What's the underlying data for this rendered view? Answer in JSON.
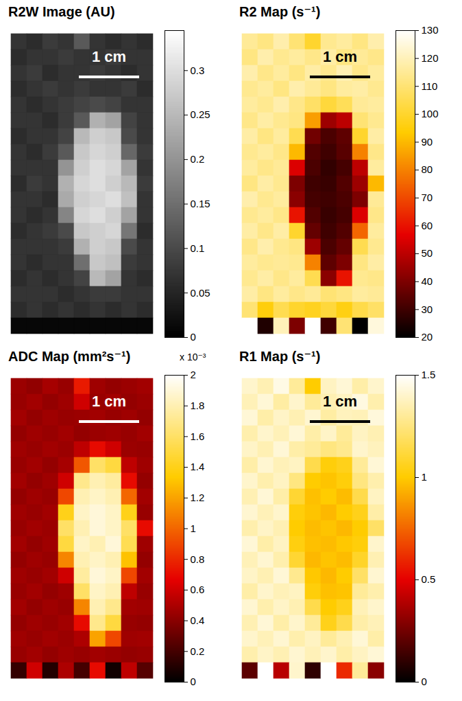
{
  "chart_data": [
    {
      "type": "heatmap",
      "title": "R2W Image (AU)",
      "color": "gray",
      "tick_labels": false,
      "annotations": [
        {
          "text": "1 cm",
          "color": "white"
        }
      ],
      "colorbar": {
        "range": [
          0,
          0.345
        ],
        "ticks": [
          0,
          0.05,
          0.1,
          0.15,
          0.2,
          0.25,
          0.3
        ]
      },
      "cells": [
        [
          0.07,
          0.06,
          0.08,
          0.07,
          0.12,
          0.07,
          0.06,
          0.07,
          0.06
        ],
        [
          0.06,
          0.07,
          0.07,
          0.08,
          0.07,
          0.07,
          0.08,
          0.07,
          0.07
        ],
        [
          0.07,
          0.08,
          0.06,
          0.07,
          0.07,
          0.08,
          0.07,
          0.06,
          0.07
        ],
        [
          0.06,
          0.07,
          0.08,
          0.07,
          0.08,
          0.07,
          0.07,
          0.08,
          0.06
        ],
        [
          0.07,
          0.06,
          0.07,
          0.08,
          0.09,
          0.1,
          0.09,
          0.07,
          0.07
        ],
        [
          0.07,
          0.07,
          0.06,
          0.08,
          0.12,
          0.24,
          0.22,
          0.09,
          0.07
        ],
        [
          0.06,
          0.07,
          0.07,
          0.09,
          0.25,
          0.28,
          0.27,
          0.1,
          0.07
        ],
        [
          0.07,
          0.06,
          0.08,
          0.12,
          0.27,
          0.29,
          0.28,
          0.14,
          0.08
        ],
        [
          0.07,
          0.07,
          0.07,
          0.2,
          0.28,
          0.3,
          0.29,
          0.22,
          0.07
        ],
        [
          0.06,
          0.08,
          0.07,
          0.24,
          0.29,
          0.3,
          0.28,
          0.25,
          0.08
        ],
        [
          0.07,
          0.07,
          0.06,
          0.23,
          0.28,
          0.29,
          0.3,
          0.26,
          0.07
        ],
        [
          0.07,
          0.06,
          0.07,
          0.18,
          0.29,
          0.3,
          0.28,
          0.22,
          0.07
        ],
        [
          0.06,
          0.07,
          0.08,
          0.1,
          0.27,
          0.28,
          0.29,
          0.16,
          0.06
        ],
        [
          0.07,
          0.07,
          0.07,
          0.08,
          0.24,
          0.28,
          0.27,
          0.1,
          0.07
        ],
        [
          0.07,
          0.06,
          0.07,
          0.07,
          0.15,
          0.27,
          0.26,
          0.08,
          0.07
        ],
        [
          0.06,
          0.07,
          0.06,
          0.07,
          0.09,
          0.25,
          0.22,
          0.07,
          0.06
        ],
        [
          0.07,
          0.07,
          0.07,
          0.06,
          0.07,
          0.08,
          0.08,
          0.07,
          0.07
        ],
        [
          0.06,
          0.07,
          0.06,
          0.07,
          0.06,
          0.07,
          0.06,
          0.07,
          0.06
        ],
        [
          0.01,
          0.01,
          0.01,
          0.01,
          0.01,
          0.01,
          0.01,
          0.01,
          0.01
        ]
      ]
    },
    {
      "type": "heatmap",
      "title": "R2 Map (s⁻¹)",
      "color": "hot",
      "tick_labels": false,
      "annotations": [
        {
          "text": "1 cm",
          "color": "black"
        }
      ],
      "colorbar": {
        "range": [
          20,
          130
        ],
        "ticks": [
          20,
          30,
          40,
          50,
          60,
          70,
          80,
          90,
          100,
          110,
          120,
          130
        ]
      },
      "cells": [
        [
          115,
          112,
          118,
          110,
          100,
          114,
          116,
          112,
          118
        ],
        [
          112,
          118,
          114,
          116,
          113,
          117,
          112,
          115,
          113
        ],
        [
          118,
          113,
          116,
          112,
          117,
          114,
          119,
          113,
          116
        ],
        [
          114,
          116,
          112,
          118,
          115,
          112,
          116,
          117,
          114
        ],
        [
          116,
          114,
          118,
          113,
          108,
          102,
          106,
          115,
          116
        ],
        [
          113,
          117,
          114,
          112,
          85,
          45,
          50,
          110,
          114
        ],
        [
          117,
          112,
          116,
          105,
          38,
          32,
          35,
          100,
          117
        ],
        [
          114,
          116,
          113,
          90,
          33,
          30,
          34,
          80,
          113
        ],
        [
          116,
          113,
          115,
          55,
          32,
          28,
          31,
          50,
          116
        ],
        [
          112,
          117,
          114,
          40,
          30,
          29,
          33,
          45,
          90
        ],
        [
          118,
          114,
          116,
          42,
          31,
          30,
          32,
          40,
          115
        ],
        [
          114,
          116,
          113,
          60,
          33,
          29,
          31,
          55,
          113
        ],
        [
          117,
          113,
          117,
          100,
          36,
          30,
          33,
          75,
          116
        ],
        [
          113,
          118,
          114,
          112,
          45,
          32,
          36,
          105,
          114
        ],
        [
          116,
          114,
          115,
          114,
          80,
          35,
          40,
          112,
          117
        ],
        [
          114,
          117,
          113,
          116,
          105,
          42,
          60,
          114,
          113
        ],
        [
          117,
          112,
          116,
          113,
          115,
          110,
          112,
          116,
          115
        ],
        [
          110,
          95,
          105,
          100,
          98,
          102,
          96,
          104,
          108
        ],
        [
          130,
          25,
          120,
          40,
          130,
          30,
          110,
          20,
          125
        ]
      ]
    },
    {
      "type": "heatmap",
      "title": "ADC Map (mm²s⁻¹)",
      "color": "hot",
      "tick_labels": false,
      "annotations": [
        {
          "text": "1 cm",
          "color": "white"
        }
      ],
      "colorbar": {
        "range": [
          0,
          2
        ],
        "ticks": [
          0,
          0.2,
          0.4,
          0.6,
          0.8,
          1,
          1.2,
          1.4,
          1.6,
          1.8,
          2
        ],
        "multiplier": "x 10⁻³"
      },
      "cells": [
        [
          0.45,
          0.42,
          0.48,
          0.44,
          0.75,
          0.46,
          0.43,
          0.45,
          0.47
        ],
        [
          0.44,
          0.47,
          0.43,
          0.46,
          0.6,
          0.44,
          0.47,
          0.43,
          0.45
        ],
        [
          0.47,
          0.43,
          0.46,
          0.44,
          0.45,
          0.47,
          0.44,
          0.46,
          0.43
        ],
        [
          0.43,
          0.46,
          0.44,
          0.47,
          0.43,
          0.45,
          0.46,
          0.44,
          0.47
        ],
        [
          0.46,
          0.44,
          0.47,
          0.45,
          0.55,
          0.7,
          0.6,
          0.45,
          0.44
        ],
        [
          0.44,
          0.47,
          0.43,
          0.48,
          0.95,
          1.6,
          1.5,
          0.55,
          0.46
        ],
        [
          0.47,
          0.43,
          0.46,
          0.6,
          1.7,
          1.8,
          1.75,
          0.7,
          0.43
        ],
        [
          0.43,
          0.46,
          0.44,
          0.9,
          1.8,
          1.85,
          1.8,
          1.0,
          0.47
        ],
        [
          0.46,
          0.44,
          0.47,
          1.4,
          1.85,
          1.9,
          1.85,
          1.4,
          0.44
        ],
        [
          0.44,
          0.47,
          0.45,
          1.6,
          1.8,
          1.9,
          1.85,
          1.6,
          0.7
        ],
        [
          0.47,
          0.43,
          0.46,
          1.5,
          1.85,
          1.8,
          1.9,
          1.55,
          0.46
        ],
        [
          0.43,
          0.46,
          0.44,
          1.1,
          1.8,
          1.85,
          1.8,
          1.3,
          0.43
        ],
        [
          0.46,
          0.44,
          0.47,
          0.6,
          1.75,
          1.9,
          1.85,
          0.9,
          0.47
        ],
        [
          0.44,
          0.47,
          0.43,
          0.46,
          1.6,
          1.85,
          1.8,
          0.55,
          0.44
        ],
        [
          0.47,
          0.43,
          0.46,
          0.44,
          1.1,
          1.8,
          1.7,
          0.47,
          0.46
        ],
        [
          0.43,
          0.46,
          0.44,
          0.47,
          0.7,
          1.7,
          1.5,
          0.44,
          0.43
        ],
        [
          0.46,
          0.44,
          0.47,
          0.45,
          0.5,
          1.2,
          0.9,
          0.46,
          0.47
        ],
        [
          0.44,
          0.47,
          0.43,
          0.46,
          0.44,
          0.47,
          0.45,
          0.43,
          0.44
        ],
        [
          0.15,
          0.6,
          0.1,
          0.5,
          0.2,
          0.7,
          0.05,
          0.55,
          0.25
        ]
      ]
    },
    {
      "type": "heatmap",
      "title": "R1 Map (s⁻¹)",
      "color": "hot",
      "tick_labels": false,
      "annotations": [
        {
          "text": "1 cm",
          "color": "black"
        }
      ],
      "colorbar": {
        "range": [
          0,
          1.5
        ],
        "ticks": [
          0,
          0.5,
          1,
          1.5
        ]
      },
      "cells": [
        [
          1.4,
          1.35,
          1.45,
          1.3,
          1.0,
          1.38,
          1.42,
          1.33,
          1.4
        ],
        [
          1.36,
          1.42,
          1.32,
          1.4,
          1.3,
          1.35,
          1.38,
          1.44,
          1.34
        ],
        [
          1.42,
          1.33,
          1.39,
          1.35,
          1.41,
          1.32,
          1.37,
          1.36,
          1.43
        ],
        [
          1.34,
          1.4,
          1.36,
          1.42,
          1.33,
          1.39,
          1.3,
          1.38,
          1.35
        ],
        [
          1.39,
          1.35,
          1.42,
          1.33,
          1.3,
          1.25,
          1.28,
          1.4,
          1.37
        ],
        [
          1.33,
          1.41,
          1.36,
          1.38,
          1.15,
          1.02,
          1.05,
          1.3,
          1.42
        ],
        [
          1.4,
          1.34,
          1.38,
          1.25,
          1.0,
          0.98,
          1.02,
          1.25,
          1.34
        ],
        [
          1.35,
          1.42,
          1.33,
          1.1,
          0.97,
          1.0,
          0.96,
          1.15,
          1.38
        ],
        [
          1.41,
          1.36,
          1.4,
          1.02,
          0.98,
          0.95,
          1.0,
          1.05,
          1.33
        ],
        [
          1.34,
          1.39,
          1.35,
          1.0,
          0.96,
          0.98,
          0.95,
          1.0,
          1.2
        ],
        [
          1.42,
          1.33,
          1.38,
          1.03,
          0.97,
          0.96,
          0.99,
          1.02,
          1.4
        ],
        [
          1.36,
          1.41,
          1.34,
          1.1,
          0.95,
          0.98,
          0.96,
          1.08,
          1.35
        ],
        [
          1.39,
          1.35,
          1.42,
          1.28,
          0.99,
          0.95,
          1.0,
          1.2,
          1.41
        ],
        [
          1.33,
          1.4,
          1.36,
          1.38,
          1.02,
          0.97,
          0.98,
          1.3,
          1.34
        ],
        [
          1.41,
          1.34,
          1.39,
          1.35,
          1.15,
          1.0,
          1.05,
          1.36,
          1.4
        ],
        [
          1.35,
          1.42,
          1.33,
          1.4,
          1.3,
          1.05,
          1.15,
          1.33,
          1.36
        ],
        [
          1.4,
          1.36,
          1.41,
          1.34,
          1.38,
          1.3,
          1.35,
          1.42,
          1.33
        ],
        [
          1.34,
          1.39,
          1.35,
          1.41,
          1.36,
          1.4,
          1.33,
          1.38,
          1.42
        ],
        [
          0.2,
          1.5,
          0.4,
          1.4,
          0.1,
          1.5,
          0.6,
          1.3,
          0.3
        ]
      ]
    }
  ]
}
